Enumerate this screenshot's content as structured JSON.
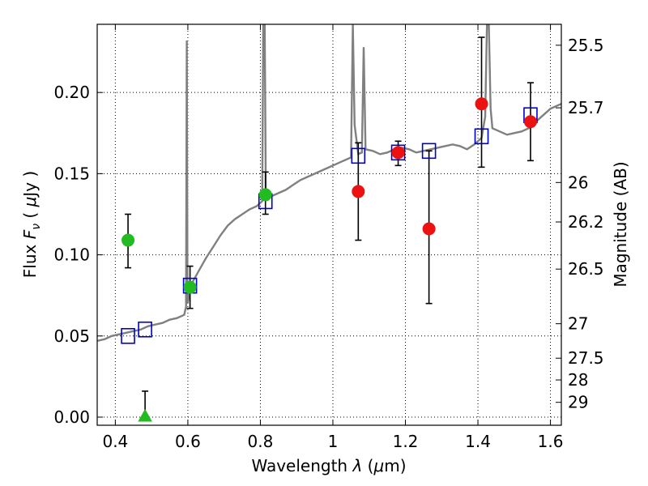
{
  "chart_data": {
    "type": "scatter",
    "xlabel": "Wavelength  λ (μm)",
    "ylabel": "Flux  F_ν  ( μJy )",
    "ylabel_parts": {
      "prefix": "Flux  ",
      "var": "F",
      "sub": "ν",
      "open": "  (  ",
      "mu": "μ",
      "unit": "Jy )"
    },
    "xlabel_parts": {
      "prefix": "Wavelength  ",
      "var": "λ",
      "open": " (",
      "mu": "μ",
      "unit": "m)"
    },
    "y2label": "Magnitude (AB)",
    "xlim": [
      0.35,
      1.63
    ],
    "ylim": [
      -0.005,
      0.242
    ],
    "grid": true,
    "x_ticks": [
      {
        "value": 0.4,
        "label": "0.4"
      },
      {
        "value": 0.6,
        "label": "0.6"
      },
      {
        "value": 0.8,
        "label": "0.8"
      },
      {
        "value": 1.0,
        "label": "1"
      },
      {
        "value": 1.2,
        "label": "1.2"
      },
      {
        "value": 1.4,
        "label": "1.4"
      },
      {
        "value": 1.6,
        "label": "1.6"
      }
    ],
    "y_ticks": [
      {
        "value": 0.0,
        "label": "0.00"
      },
      {
        "value": 0.05,
        "label": "0.05"
      },
      {
        "value": 0.1,
        "label": "0.10"
      },
      {
        "value": 0.15,
        "label": "0.15"
      },
      {
        "value": 0.2,
        "label": "0.20"
      }
    ],
    "y2_ticks": [
      {
        "mag": 25.5,
        "label": "25.5"
      },
      {
        "mag": 25.7,
        "label": "25.7"
      },
      {
        "mag": 26.0,
        "label": "26"
      },
      {
        "mag": 26.2,
        "label": "26.2"
      },
      {
        "mag": 26.5,
        "label": "26.5"
      },
      {
        "mag": 27.0,
        "label": "27"
      },
      {
        "mag": 27.5,
        "label": "27.5"
      },
      {
        "mag": 28.0,
        "label": "28"
      },
      {
        "mag": 29.0,
        "label": "29"
      }
    ],
    "series": [
      {
        "kind": "model_spectrum",
        "color": "#808080",
        "points": [
          [
            0.35,
            0.047
          ],
          [
            0.37,
            0.048
          ],
          [
            0.39,
            0.05
          ],
          [
            0.41,
            0.051
          ],
          [
            0.43,
            0.052
          ],
          [
            0.45,
            0.053
          ],
          [
            0.47,
            0.054
          ],
          [
            0.49,
            0.056
          ],
          [
            0.51,
            0.057
          ],
          [
            0.53,
            0.058
          ],
          [
            0.55,
            0.06
          ],
          [
            0.57,
            0.061
          ],
          [
            0.59,
            0.063
          ],
          [
            0.595,
            0.068
          ],
          [
            0.597,
            0.232
          ],
          [
            0.599,
            0.07
          ],
          [
            0.61,
            0.082
          ],
          [
            0.63,
            0.09
          ],
          [
            0.65,
            0.098
          ],
          [
            0.67,
            0.105
          ],
          [
            0.69,
            0.112
          ],
          [
            0.71,
            0.118
          ],
          [
            0.73,
            0.122
          ],
          [
            0.75,
            0.125
          ],
          [
            0.77,
            0.128
          ],
          [
            0.79,
            0.13
          ],
          [
            0.805,
            0.133
          ],
          [
            0.808,
            0.242
          ],
          [
            0.812,
            0.242
          ],
          [
            0.815,
            0.135
          ],
          [
            0.83,
            0.136
          ],
          [
            0.85,
            0.138
          ],
          [
            0.87,
            0.14
          ],
          [
            0.89,
            0.143
          ],
          [
            0.91,
            0.146
          ],
          [
            0.93,
            0.148
          ],
          [
            0.95,
            0.15
          ],
          [
            0.97,
            0.152
          ],
          [
            0.99,
            0.154
          ],
          [
            1.01,
            0.156
          ],
          [
            1.03,
            0.158
          ],
          [
            1.05,
            0.16
          ],
          [
            1.055,
            0.242
          ],
          [
            1.06,
            0.18
          ],
          [
            1.07,
            0.162
          ],
          [
            1.08,
            0.163
          ],
          [
            1.085,
            0.228
          ],
          [
            1.09,
            0.165
          ],
          [
            1.11,
            0.164
          ],
          [
            1.13,
            0.162
          ],
          [
            1.15,
            0.163
          ],
          [
            1.17,
            0.165
          ],
          [
            1.19,
            0.166
          ],
          [
            1.21,
            0.165
          ],
          [
            1.23,
            0.163
          ],
          [
            1.25,
            0.164
          ],
          [
            1.27,
            0.165
          ],
          [
            1.29,
            0.166
          ],
          [
            1.31,
            0.167
          ],
          [
            1.33,
            0.168
          ],
          [
            1.35,
            0.167
          ],
          [
            1.37,
            0.165
          ],
          [
            1.39,
            0.168
          ],
          [
            1.41,
            0.172
          ],
          [
            1.42,
            0.185
          ],
          [
            1.425,
            0.242
          ],
          [
            1.43,
            0.242
          ],
          [
            1.435,
            0.19
          ],
          [
            1.44,
            0.178
          ],
          [
            1.46,
            0.176
          ],
          [
            1.48,
            0.174
          ],
          [
            1.5,
            0.175
          ],
          [
            1.52,
            0.176
          ],
          [
            1.54,
            0.178
          ],
          [
            1.56,
            0.182
          ],
          [
            1.58,
            0.186
          ],
          [
            1.6,
            0.19
          ],
          [
            1.63,
            0.193
          ]
        ]
      },
      {
        "kind": "model_photometry",
        "marker": "open-square",
        "color": "#0000cc",
        "points": [
          [
            0.435,
            0.05
          ],
          [
            0.482,
            0.054
          ],
          [
            0.606,
            0.081
          ],
          [
            0.814,
            0.133
          ],
          [
            1.07,
            0.161
          ],
          [
            1.18,
            0.163
          ],
          [
            1.265,
            0.164
          ],
          [
            1.41,
            0.173
          ],
          [
            1.545,
            0.186
          ]
        ]
      },
      {
        "kind": "observed_optical",
        "marker": "filled-circle",
        "color": "#22bb22",
        "points": [
          {
            "x": 0.435,
            "y": 0.109,
            "yerr": [
              0.092,
              0.125
            ]
          },
          {
            "x": 0.606,
            "y": 0.08,
            "yerr": [
              0.067,
              0.093
            ]
          },
          {
            "x": 0.814,
            "y": 0.137,
            "yerr": [
              0.125,
              0.151
            ]
          }
        ]
      },
      {
        "kind": "observed_optical_limit",
        "marker": "filled-triangle",
        "color": "#22bb22",
        "points": [
          {
            "x": 0.482,
            "y": 0.0,
            "yerr": [
              0.0,
              0.016
            ]
          }
        ]
      },
      {
        "kind": "observed_nir",
        "marker": "filled-circle",
        "color": "#ee1111",
        "points": [
          {
            "x": 1.07,
            "y": 0.139,
            "yerr": [
              0.109,
              0.169
            ]
          },
          {
            "x": 1.18,
            "y": 0.163,
            "yerr": [
              0.155,
              0.17
            ]
          },
          {
            "x": 1.265,
            "y": 0.116,
            "yerr": [
              0.07,
              0.164
            ]
          },
          {
            "x": 1.41,
            "y": 0.193,
            "yerr": [
              0.154,
              0.234
            ]
          },
          {
            "x": 1.545,
            "y": 0.182,
            "yerr": [
              0.158,
              0.206
            ]
          }
        ]
      }
    ]
  }
}
